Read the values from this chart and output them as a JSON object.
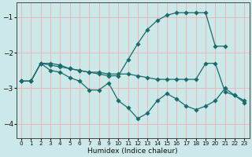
{
  "xlabel": "Humidex (Indice chaleur)",
  "background_color": "#cce8e8",
  "grid_color": "#e8b8b8",
  "line_color": "#1a6b6b",
  "xlim": [
    -0.5,
    23.5
  ],
  "ylim": [
    -4.4,
    -0.6
  ],
  "yticks": [
    -4,
    -3,
    -2,
    -1
  ],
  "xticks": [
    0,
    1,
    2,
    3,
    4,
    5,
    6,
    7,
    8,
    9,
    10,
    11,
    12,
    13,
    14,
    15,
    16,
    17,
    18,
    19,
    20,
    21,
    22,
    23
  ],
  "line1_x": [
    0,
    1,
    2,
    3,
    4,
    5,
    6,
    7,
    8,
    9,
    10,
    11,
    12,
    13,
    14,
    15,
    16,
    17,
    18,
    19,
    20,
    21
  ],
  "line1_y": [
    -2.8,
    -2.8,
    -2.3,
    -2.3,
    -2.35,
    -2.45,
    -2.5,
    -2.55,
    -2.6,
    -2.65,
    -2.65,
    -2.2,
    -1.75,
    -1.35,
    -1.1,
    -0.95,
    -0.88,
    -0.88,
    -0.88,
    -0.88,
    -1.82,
    -1.82
  ],
  "line2_x": [
    0,
    1,
    2,
    3,
    4,
    5,
    6,
    7,
    8,
    9,
    10,
    11,
    12,
    13,
    14,
    15,
    16,
    17,
    18,
    19,
    20,
    21,
    22,
    23
  ],
  "line2_y": [
    -2.8,
    -2.8,
    -2.3,
    -2.35,
    -2.4,
    -2.45,
    -2.5,
    -2.55,
    -2.55,
    -2.6,
    -2.6,
    -2.6,
    -2.65,
    -2.7,
    -2.75,
    -2.75,
    -2.75,
    -2.75,
    -2.75,
    -2.3,
    -2.3,
    -3.1,
    -3.2,
    -3.35
  ],
  "line3_x": [
    0,
    1,
    2,
    3,
    4,
    5,
    6,
    7,
    8,
    9,
    10,
    11,
    12,
    13,
    14,
    15,
    16,
    17,
    18,
    19,
    20,
    21,
    22,
    23
  ],
  "line3_y": [
    -2.8,
    -2.8,
    -2.3,
    -2.5,
    -2.55,
    -2.7,
    -2.8,
    -3.05,
    -3.05,
    -2.85,
    -3.35,
    -3.55,
    -3.85,
    -3.7,
    -3.35,
    -3.15,
    -3.3,
    -3.5,
    -3.6,
    -3.5,
    -3.35,
    -3.0,
    -3.2,
    -3.4
  ]
}
